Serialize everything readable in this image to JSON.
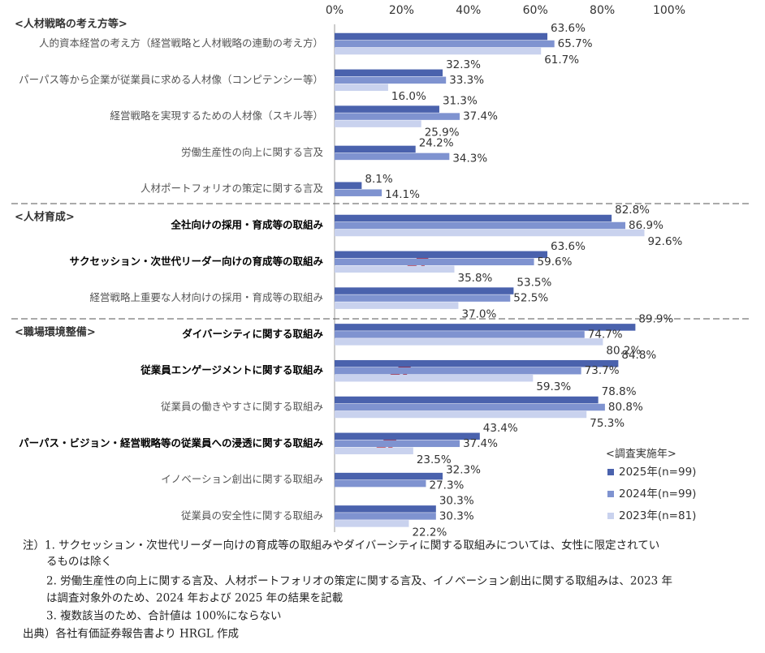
{
  "chart_data": {
    "type": "bar",
    "orientation": "horizontal",
    "sections": [
      {
        "label": "<人材戦略の考え方等>",
        "start": 0
      },
      {
        "label": "<人材育成>",
        "start": 5
      },
      {
        "label": "<職場環境整備>",
        "start": 8
      }
    ],
    "categories": [
      "人的資本経営の考え方（経営戦略と人材戦略の連動の考え方）",
      "パーパス等から企業が従業員に求める人材像（コンピテンシー等）",
      "経営戦略を実現するための人材像（スキル等）",
      "労働生産性の向上に関する言及",
      "人材ポートフォリオの策定に関する言及",
      "全社向けの採用・育成等の取組み",
      "サクセッション・次世代リーダー向けの育成等の取組み",
      "経営戦略上重要な人材向けの採用・育成等の取組み",
      "ダイバーシティに関する取組み",
      "従業員エンゲージメントに関する取組み",
      "従業員の働きやすさに関する取組み",
      "パーパス・ビジョン・経営戦略等の従業員への浸透に関する取組み",
      "イノベーション創出に関する取組み",
      "従業員の安全性に関する取組み"
    ],
    "bold": [
      false,
      false,
      false,
      false,
      false,
      true,
      true,
      false,
      true,
      true,
      false,
      true,
      false,
      false
    ],
    "series": [
      {
        "name": "2025年(n=99)",
        "color": "#4a62ad",
        "values": [
          63.6,
          32.3,
          31.3,
          24.2,
          8.1,
          82.8,
          63.6,
          53.5,
          89.9,
          84.8,
          78.8,
          43.4,
          32.3,
          30.3
        ],
        "value_labels": [
          "63.6%",
          "32.3%",
          "31.3%",
          "24.2%",
          "8.1%",
          "82.8%",
          "63.6%",
          "53.5%",
          "89.9%",
          "84.8%",
          "78.8%",
          "43.4%",
          "32.3%",
          "30.3%"
        ]
      },
      {
        "name": "2024年(n=99)",
        "color": "#7f93d0",
        "values": [
          65.7,
          33.3,
          37.4,
          34.3,
          14.1,
          86.9,
          59.6,
          52.5,
          74.7,
          73.7,
          80.8,
          37.4,
          27.3,
          30.3
        ],
        "value_labels": [
          "65.7%",
          "33.3%",
          "37.4%",
          "34.3%",
          "14.1%",
          "86.9%",
          "59.6%",
          "52.5%",
          "74.7%",
          "73.7%",
          "80.8%",
          "37.4%",
          "27.3%",
          "30.3%"
        ]
      },
      {
        "name": "2023年(n=81)",
        "color": "#c9d2ee",
        "values": [
          61.7,
          16.0,
          25.9,
          null,
          null,
          92.6,
          35.8,
          37.0,
          80.2,
          59.3,
          75.3,
          23.5,
          null,
          22.2
        ],
        "value_labels": [
          "61.7%",
          "16.0%",
          "25.9%",
          null,
          null,
          "92.6%",
          "35.8%",
          "37.0%",
          "80.2%",
          "59.3%",
          "75.3%",
          "23.5%",
          null,
          "22.2%"
        ]
      }
    ],
    "highlight": {
      "series": 0,
      "index": 8,
      "color": "#c00000"
    },
    "xlim": [
      0,
      100
    ],
    "xticks": [
      {
        "value": 0,
        "label": "0%"
      },
      {
        "value": 20,
        "label": "20%"
      },
      {
        "value": 40,
        "label": "40%"
      },
      {
        "value": 60,
        "label": "60%"
      },
      {
        "value": 80,
        "label": "80%"
      },
      {
        "value": 100,
        "label": "100%"
      }
    ],
    "legend_title": "<調査実施年>",
    "legend_position": "lower right",
    "notes": [
      "注）1.  サクセッション・次世代リーダー向けの育成等の取組みやダイバーシティに関する取組みについては、女性に限定されてい",
      "るものは除く",
      "2.  労働生産性の向上に関する言及、人材ポートフォリオの策定に関する言及、イノベーション創出に関する取組みは、2023 年",
      "は調査対象外のため、2024 年および 2025 年の結果を記載",
      "3.  複数該当のため、合計値は 100%にならない",
      "出典）各社有価証券報告書より HRGL 作成"
    ]
  }
}
